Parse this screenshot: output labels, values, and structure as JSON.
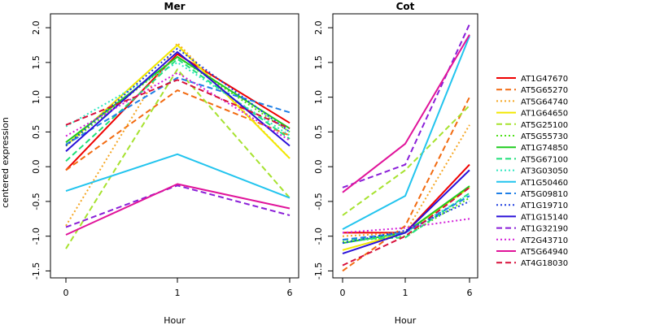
{
  "chart_data": {
    "type": "line",
    "ylabel": "centered expression",
    "xlabel": "Hour",
    "x": [
      "0",
      "1",
      "6"
    ],
    "ylim": [
      -1.6,
      2.2
    ],
    "yticks": [
      -1.5,
      -1.0,
      -0.5,
      0.0,
      0.5,
      1.0,
      1.5,
      2.0
    ],
    "ytick_labels": [
      "-1.5",
      "-1.0",
      "-0.5",
      "0.0",
      "0.5",
      "1.0",
      "1.5",
      "2.0"
    ],
    "grid": false,
    "legend_position": "right",
    "legend": [
      {
        "name": "AT1G47670",
        "color": "#ee0000",
        "dash": "solid"
      },
      {
        "name": "AT5G65270",
        "color": "#f26a10",
        "dash": "dashed"
      },
      {
        "name": "AT5G64740",
        "color": "#f5a623",
        "dash": "dotted"
      },
      {
        "name": "AT1G64650",
        "color": "#f2e800",
        "dash": "solid"
      },
      {
        "name": "AT5G25100",
        "color": "#a6e22e",
        "dash": "dashed"
      },
      {
        "name": "AT5G55730",
        "color": "#4fe01a",
        "dash": "dotted"
      },
      {
        "name": "AT1G74850",
        "color": "#1fcc1f",
        "dash": "solid"
      },
      {
        "name": "AT5G67100",
        "color": "#1fe07a",
        "dash": "dashed"
      },
      {
        "name": "AT3G03050",
        "color": "#2ee6c0",
        "dash": "dotted"
      },
      {
        "name": "AT1G50460",
        "color": "#22c4ee",
        "dash": "solid"
      },
      {
        "name": "AT5G09810",
        "color": "#1f7fe6",
        "dash": "dashed"
      },
      {
        "name": "AT1G19710",
        "color": "#1f3fe0",
        "dash": "dotted"
      },
      {
        "name": "AT1G15140",
        "color": "#2a10d8",
        "dash": "solid"
      },
      {
        "name": "AT1G32190",
        "color": "#8a1ed8",
        "dash": "dashed"
      },
      {
        "name": "AT2G43710",
        "color": "#d21ed8",
        "dash": "dotted"
      },
      {
        "name": "AT5G64940",
        "color": "#e0139a",
        "dash": "solid"
      },
      {
        "name": "AT4G18030",
        "color": "#d8103a",
        "dash": "dashed"
      }
    ],
    "panels": [
      {
        "title": "Mer",
        "series": [
          {
            "name": "AT1G47670",
            "values": [
              -0.05,
              1.62,
              0.63
            ]
          },
          {
            "name": "AT5G65270",
            "values": [
              -0.05,
              1.1,
              0.45
            ]
          },
          {
            "name": "AT5G64740",
            "values": [
              -0.85,
              1.78,
              0.12
            ]
          },
          {
            "name": "AT1G64650",
            "values": [
              0.3,
              1.75,
              0.12
            ]
          },
          {
            "name": "AT5G25100",
            "values": [
              -1.18,
              1.4,
              -0.45
            ]
          },
          {
            "name": "AT5G55730",
            "values": [
              0.3,
              1.58,
              0.5
            ]
          },
          {
            "name": "AT1G74850",
            "values": [
              0.35,
              1.58,
              0.55
            ]
          },
          {
            "name": "AT5G67100",
            "values": [
              0.08,
              1.55,
              0.4
            ]
          },
          {
            "name": "AT3G03050",
            "values": [
              0.58,
              1.5,
              0.45
            ]
          },
          {
            "name": "AT1G50460",
            "values": [
              -0.35,
              0.18,
              -0.45
            ]
          },
          {
            "name": "AT5G09810",
            "values": [
              0.32,
              1.28,
              0.78
            ]
          },
          {
            "name": "AT1G19710",
            "values": [
              0.3,
              1.7,
              0.5
            ]
          },
          {
            "name": "AT1G15140",
            "values": [
              0.22,
              1.65,
              0.3
            ]
          },
          {
            "name": "AT1G32190",
            "values": [
              -0.87,
              -0.27,
              -0.7
            ]
          },
          {
            "name": "AT2G43710",
            "values": [
              0.44,
              1.35,
              0.38
            ]
          },
          {
            "name": "AT5G64940",
            "values": [
              -0.98,
              -0.25,
              -0.6
            ]
          },
          {
            "name": "AT4G18030",
            "values": [
              0.6,
              1.25,
              0.55
            ]
          }
        ]
      },
      {
        "title": "Cot",
        "series": [
          {
            "name": "AT1G47670",
            "values": [
              -0.95,
              -0.95,
              0.03
            ]
          },
          {
            "name": "AT5G65270",
            "values": [
              -1.5,
              -0.85,
              1.0
            ]
          },
          {
            "name": "AT5G64740",
            "values": [
              -1.0,
              -0.95,
              0.6
            ]
          },
          {
            "name": "AT1G64650",
            "values": [
              -1.2,
              -0.95,
              -0.3
            ]
          },
          {
            "name": "AT5G25100",
            "values": [
              -0.7,
              -0.05,
              0.88
            ]
          },
          {
            "name": "AT5G55730",
            "values": [
              -1.08,
              -1.0,
              -0.45
            ]
          },
          {
            "name": "AT1G74850",
            "values": [
              -1.1,
              -0.95,
              -0.28
            ]
          },
          {
            "name": "AT5G67100",
            "values": [
              -1.05,
              -1.02,
              -0.38
            ]
          },
          {
            "name": "AT3G03050",
            "values": [
              -1.1,
              -0.95,
              -0.4
            ]
          },
          {
            "name": "AT1G50460",
            "values": [
              -0.9,
              -0.42,
              1.88
            ]
          },
          {
            "name": "AT5G09810",
            "values": [
              -1.05,
              -0.95,
              -0.42
            ]
          },
          {
            "name": "AT1G19710",
            "values": [
              -1.1,
              -0.92,
              -0.5
            ]
          },
          {
            "name": "AT1G15140",
            "values": [
              -1.25,
              -0.95,
              -0.05
            ]
          },
          {
            "name": "AT1G32190",
            "values": [
              -0.3,
              0.03,
              2.05
            ]
          },
          {
            "name": "AT2G43710",
            "values": [
              -0.95,
              -0.88,
              -0.75
            ]
          },
          {
            "name": "AT5G64940",
            "values": [
              -0.37,
              0.33,
              1.9
            ]
          },
          {
            "name": "AT4G18030",
            "values": [
              -1.42,
              -1.0,
              -0.3
            ]
          }
        ]
      }
    ]
  }
}
